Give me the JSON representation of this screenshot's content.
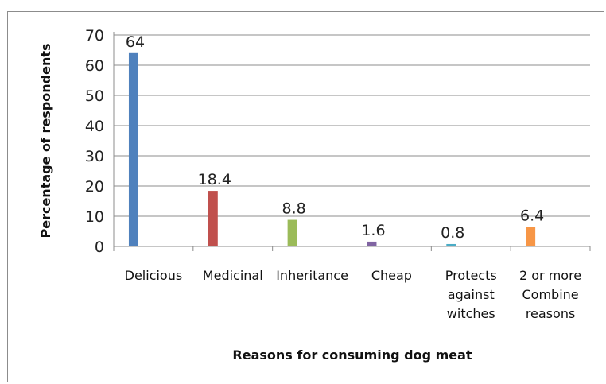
{
  "chart_data": {
    "type": "bar",
    "categories": [
      [
        "Delicious"
      ],
      [
        "Medicinal"
      ],
      [
        "Inheritance"
      ],
      [
        "Cheap"
      ],
      [
        "Protects",
        "against",
        "witches"
      ],
      [
        "2  or more",
        "Combine",
        "reasons"
      ]
    ],
    "values": [
      64,
      18.4,
      8.8,
      1.6,
      0.8,
      6.4
    ],
    "value_labels": [
      "64",
      "18.4",
      "8.8",
      "1.6",
      "0.8",
      "6.4"
    ],
    "colors": [
      "#4f81bd",
      "#c0504d",
      "#9bbb59",
      "#8064a2",
      "#4bacc6",
      "#f79646"
    ],
    "xlabel": "Reasons for consuming dog meat",
    "ylabel": "Percentage of respondents",
    "ylim": [
      0,
      70
    ],
    "yticks": [
      0,
      10,
      20,
      30,
      40,
      50,
      60,
      70
    ],
    "grid": true,
    "legend": "none"
  }
}
